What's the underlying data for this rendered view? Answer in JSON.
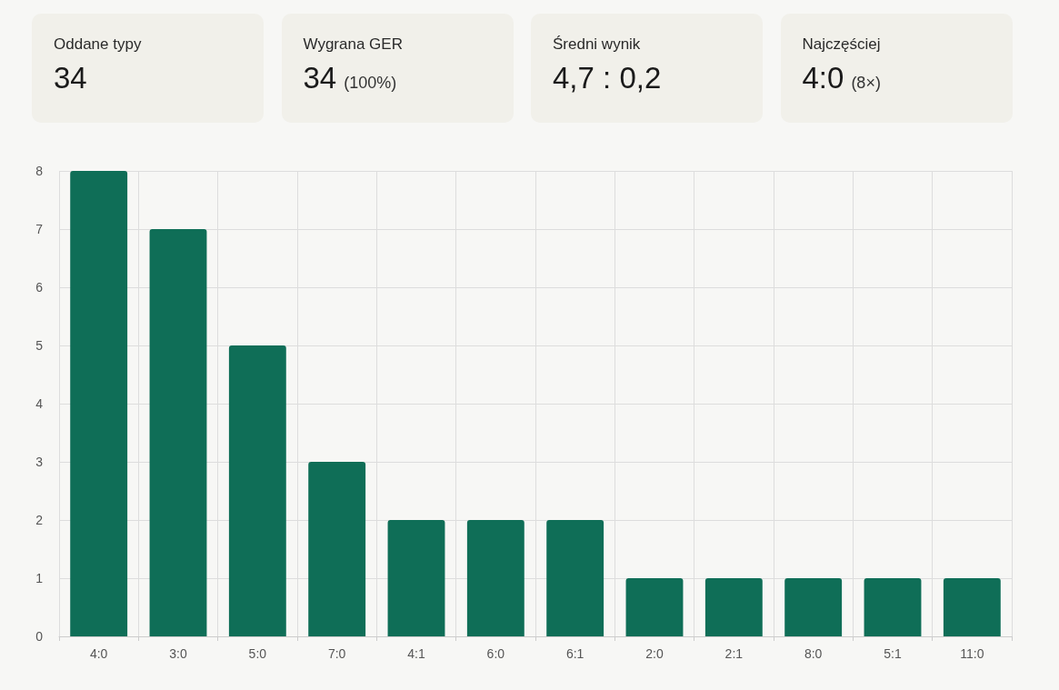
{
  "chart_data": [
    {
      "type": "other",
      "title": "Oddane typy",
      "annotations": [
        "34"
      ]
    },
    {
      "type": "other",
      "title": "Wygrana GER",
      "annotations": [
        "34",
        "(100%)"
      ]
    },
    {
      "type": "other",
      "title": "Średni wynik",
      "annotations": [
        "4,7 : 0,2"
      ]
    },
    {
      "type": "other",
      "title": "Najczęściej",
      "annotations": [
        "4:0",
        "(8×)"
      ]
    },
    {
      "type": "bar",
      "categories": [
        "4:0",
        "3:0",
        "5:0",
        "7:0",
        "4:1",
        "6:0",
        "6:1",
        "2:0",
        "2:1",
        "8:0",
        "5:1",
        "11:0"
      ],
      "values": [
        8,
        7,
        5,
        3,
        2,
        2,
        2,
        1,
        1,
        1,
        1,
        1
      ],
      "color": "#0f6e57",
      "ylim": [
        0,
        8
      ],
      "yticks": [
        0,
        1,
        2,
        3,
        4,
        5,
        6,
        7,
        8
      ],
      "grid": true
    }
  ]
}
